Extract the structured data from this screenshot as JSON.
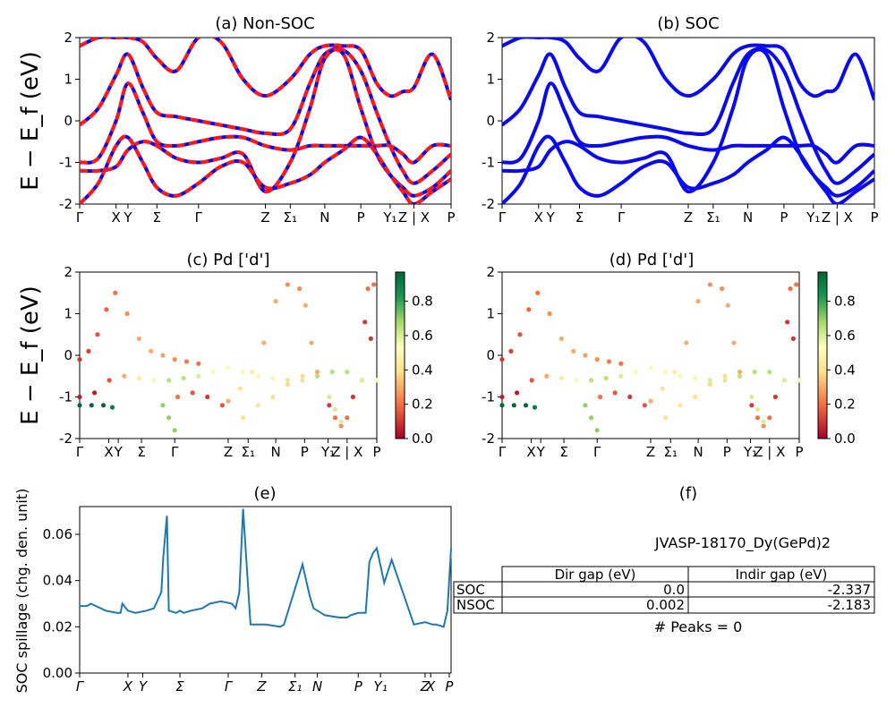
{
  "common": {
    "ylabel": "E − E_f (eV)",
    "k_labels": [
      "Γ",
      "X",
      "Y",
      "Σ",
      "Γ",
      "Z",
      "Σ₁",
      "N",
      "P",
      "Y₁",
      "Z | X",
      "P"
    ],
    "k_positions": [
      0,
      0.098,
      0.13,
      0.208,
      0.32,
      0.5,
      0.567,
      0.66,
      0.757,
      0.836,
      0.9,
      1.0
    ],
    "ylim": [
      -2,
      2
    ],
    "yticks": [
      -2,
      -1,
      0,
      1,
      2
    ]
  },
  "panel_a": {
    "title": "(a) Non-SOC"
  },
  "panel_b": {
    "title": "(b) SOC"
  },
  "panel_c": {
    "title": "(c)  Pd ['d']"
  },
  "panel_d": {
    "title": "(d) Pd ['d']"
  },
  "colorbar": {
    "ticks": [
      "0.0",
      "0.2",
      "0.4",
      "0.6",
      "0.8"
    ],
    "range": [
      0,
      0.97
    ]
  },
  "panel_e": {
    "title": "(e)",
    "ylabel": "SOC spillage (chg. den. unit)",
    "yticks": [
      "0.00",
      "0.02",
      "0.04",
      "0.06"
    ],
    "k_labels": [
      "Γ",
      "X",
      "Y",
      "Σ",
      "Γ",
      "Z",
      "Σ₁",
      "N",
      "P",
      "Y₁",
      "Z",
      "X",
      "P"
    ]
  },
  "panel_f": {
    "title": "(f)",
    "material": "JVASP-18170_Dy(GePd)2",
    "table": {
      "headers": [
        "Dir gap (eV)",
        "Indir gap (eV)"
      ],
      "rows": [
        {
          "label": "SOC",
          "dir": "0.0",
          "indir": "-2.337"
        },
        {
          "label": "NSOC",
          "dir": "0.002",
          "indir": "-2.183"
        }
      ]
    },
    "peaks": "# Peaks = 0"
  },
  "colors": {
    "non_soc": "#ff1a1a",
    "soc": "#0a0aee",
    "spillage": "#1f77b4"
  },
  "chart_data": [
    {
      "type": "line",
      "title": "(a) Non-SOC",
      "ylabel": "E − E_f (eV)",
      "ylim": [
        -2,
        2
      ],
      "x": [
        0,
        0.05,
        0.098,
        0.13,
        0.17,
        0.208,
        0.26,
        0.32,
        0.38,
        0.44,
        0.5,
        0.567,
        0.62,
        0.66,
        0.71,
        0.757,
        0.8,
        0.836,
        0.87,
        0.9,
        0.95,
        1.0
      ],
      "series": [
        {
          "name": "",
          "values": [
            -0.1,
            0.3,
            1.1,
            1.6,
            0.8,
            0.2,
            0.1,
            0.0,
            -0.1,
            -0.2,
            -0.3,
            -0.2,
            0.9,
            1.6,
            1.7,
            1.2,
            0.2,
            -0.6,
            -1.2,
            -1.5,
            -1.2,
            -0.8
          ]
        },
        {
          "name": "",
          "values": [
            -1.0,
            -0.9,
            0.0,
            0.9,
            0.2,
            -0.5,
            -0.6,
            -0.5,
            -0.4,
            -0.4,
            -0.6,
            -0.7,
            -0.6,
            -0.6,
            -0.6,
            -0.6,
            -0.6,
            -0.6,
            -0.8,
            -1.0,
            -0.6,
            -0.6
          ]
        },
        {
          "name": "",
          "values": [
            -1.2,
            -1.2,
            -1.1,
            -0.7,
            -0.5,
            -0.6,
            -0.9,
            -1.0,
            -0.9,
            -0.8,
            -1.7,
            -1.0,
            0.3,
            1.5,
            1.6,
            0.3,
            -0.8,
            -1.3,
            -1.6,
            -1.8,
            -1.6,
            -1.2
          ]
        },
        {
          "name": "",
          "values": [
            -2.0,
            -1.5,
            -0.6,
            -0.4,
            -1.0,
            -1.6,
            -1.8,
            -1.5,
            -1.1,
            -1.0,
            -1.6,
            -1.5,
            -1.3,
            -1.0,
            -0.7,
            -0.4,
            -0.8,
            -1.3,
            -1.7,
            -2.0,
            -1.7,
            -1.4
          ]
        },
        {
          "name": "",
          "values": [
            1.8,
            2.0,
            2.0,
            2.0,
            1.9,
            1.5,
            1.2,
            2.0,
            1.9,
            1.0,
            0.6,
            1.0,
            1.6,
            1.8,
            1.8,
            1.7,
            0.9,
            0.6,
            0.7,
            0.8,
            1.6,
            0.5
          ]
        }
      ]
    },
    {
      "type": "line",
      "title": "(b) SOC",
      "ylim": [
        -2,
        2
      ],
      "x": [
        0,
        0.05,
        0.098,
        0.13,
        0.17,
        0.208,
        0.26,
        0.32,
        0.38,
        0.44,
        0.5,
        0.567,
        0.62,
        0.66,
        0.71,
        0.757,
        0.8,
        0.836,
        0.87,
        0.9,
        0.95,
        1.0
      ],
      "series": [
        {
          "name": "",
          "values": [
            -0.1,
            0.3,
            1.1,
            1.6,
            0.8,
            0.2,
            0.1,
            0.0,
            -0.1,
            -0.2,
            -0.3,
            -0.2,
            0.9,
            1.6,
            1.7,
            1.2,
            0.2,
            -0.6,
            -1.2,
            -1.5,
            -1.2,
            -0.8
          ]
        },
        {
          "name": "",
          "values": [
            -1.0,
            -0.9,
            0.0,
            0.9,
            0.2,
            -0.5,
            -0.6,
            -0.5,
            -0.4,
            -0.4,
            -0.6,
            -0.7,
            -0.6,
            -0.6,
            -0.6,
            -0.6,
            -0.6,
            -0.6,
            -0.8,
            -1.0,
            -0.6,
            -0.6
          ]
        },
        {
          "name": "",
          "values": [
            -1.2,
            -1.2,
            -1.1,
            -0.7,
            -0.5,
            -0.6,
            -0.9,
            -1.0,
            -0.9,
            -0.8,
            -1.7,
            -1.0,
            0.3,
            1.5,
            1.6,
            0.3,
            -0.8,
            -1.3,
            -1.6,
            -1.8,
            -1.6,
            -1.2
          ]
        },
        {
          "name": "",
          "values": [
            -2.0,
            -1.5,
            -0.6,
            -0.4,
            -1.0,
            -1.6,
            -1.8,
            -1.5,
            -1.1,
            -1.0,
            -1.6,
            -1.5,
            -1.3,
            -1.0,
            -0.7,
            -0.4,
            -0.8,
            -1.3,
            -1.7,
            -2.0,
            -1.7,
            -1.4
          ]
        },
        {
          "name": "",
          "values": [
            1.8,
            2.0,
            2.0,
            2.0,
            1.9,
            1.5,
            1.2,
            2.0,
            1.9,
            1.0,
            0.6,
            1.0,
            1.6,
            1.8,
            1.8,
            1.7,
            0.9,
            0.6,
            0.7,
            0.8,
            1.6,
            0.5
          ]
        }
      ]
    },
    {
      "type": "scatter",
      "title": "(c)  Pd ['d']",
      "ylim": [
        -2,
        2
      ],
      "colorbar_range": [
        0,
        0.97
      ],
      "points": [
        [
          0,
          -0.1,
          0.1
        ],
        [
          0.03,
          0.1,
          0.12
        ],
        [
          0.06,
          0.5,
          0.15
        ],
        [
          0.09,
          1.1,
          0.18
        ],
        [
          0.12,
          1.5,
          0.2
        ],
        [
          0.16,
          1.0,
          0.25
        ],
        [
          0.2,
          0.4,
          0.3
        ],
        [
          0.24,
          0.1,
          0.3
        ],
        [
          0.28,
          0.0,
          0.28
        ],
        [
          0.32,
          -0.1,
          0.25
        ],
        [
          0.36,
          -0.15,
          0.22
        ],
        [
          0.4,
          -0.2,
          0.2
        ],
        [
          0.0,
          -1.0,
          0.05
        ],
        [
          0.05,
          -0.9,
          0.05
        ],
        [
          0.1,
          -0.6,
          0.15
        ],
        [
          0.15,
          -0.5,
          0.3
        ],
        [
          0.2,
          -0.55,
          0.45
        ],
        [
          0.25,
          -0.6,
          0.55
        ],
        [
          0.3,
          -0.6,
          0.65
        ],
        [
          0.35,
          -0.55,
          0.65
        ],
        [
          0.4,
          -0.5,
          0.6
        ],
        [
          0.45,
          -0.4,
          0.55
        ],
        [
          0.5,
          -0.3,
          0.5
        ],
        [
          0.55,
          -0.4,
          0.5
        ],
        [
          0.6,
          -0.5,
          0.5
        ],
        [
          0.65,
          -0.55,
          0.55
        ],
        [
          0.7,
          -0.6,
          0.6
        ],
        [
          0.75,
          -0.6,
          0.6
        ],
        [
          0.8,
          -0.5,
          0.65
        ],
        [
          0.85,
          -0.4,
          0.65
        ],
        [
          0.9,
          -0.4,
          0.65
        ],
        [
          0.95,
          -0.6,
          0.6
        ],
        [
          1.0,
          -0.6,
          0.55
        ],
        [
          0.0,
          -1.2,
          0.97
        ],
        [
          0.04,
          -1.2,
          0.97
        ],
        [
          0.08,
          -1.2,
          0.97
        ],
        [
          0.11,
          -1.25,
          0.9
        ],
        [
          0.28,
          -1.2,
          0.7
        ],
        [
          0.3,
          -1.5,
          0.7
        ],
        [
          0.32,
          -1.8,
          0.7
        ],
        [
          0.33,
          -1.0,
          0.2
        ],
        [
          0.38,
          -0.9,
          0.15
        ],
        [
          0.43,
          -1.0,
          0.1
        ],
        [
          0.48,
          -1.2,
          0.15
        ],
        [
          0.5,
          -1.1,
          0.3
        ],
        [
          0.54,
          -0.8,
          0.4
        ],
        [
          0.58,
          -0.4,
          0.45
        ],
        [
          0.62,
          0.3,
          0.3
        ],
        [
          0.66,
          1.3,
          0.3
        ],
        [
          0.7,
          1.7,
          0.25
        ],
        [
          0.74,
          1.6,
          0.25
        ],
        [
          0.76,
          1.2,
          0.3
        ],
        [
          0.78,
          0.3,
          0.3
        ],
        [
          0.8,
          -0.4,
          0.3
        ],
        [
          0.84,
          -1.2,
          0.1
        ],
        [
          0.86,
          -1.5,
          0.2
        ],
        [
          0.88,
          -1.7,
          0.25
        ],
        [
          0.9,
          -1.5,
          0.2
        ],
        [
          0.92,
          -1.0,
          0.1
        ],
        [
          0.55,
          -1.5,
          0.4
        ],
        [
          0.6,
          -1.2,
          0.42
        ],
        [
          0.65,
          -1.0,
          0.4
        ],
        [
          0.7,
          -0.7,
          0.38
        ],
        [
          0.75,
          -0.5,
          0.38
        ],
        [
          0.97,
          1.6,
          0.2
        ],
        [
          0.99,
          1.7,
          0.2
        ],
        [
          0.96,
          0.8,
          0.1
        ],
        [
          0.98,
          0.4,
          0.1
        ],
        [
          0.84,
          -1.0,
          0.6
        ],
        [
          0.86,
          -1.3,
          0.6
        ],
        [
          0.88,
          -1.6,
          0.6
        ]
      ]
    },
    {
      "type": "scatter",
      "title": "(d) Pd ['d']",
      "ylim": [
        -2,
        2
      ],
      "colorbar_range": [
        0,
        0.97
      ],
      "points": [
        [
          0,
          -0.1,
          0.1
        ],
        [
          0.03,
          0.1,
          0.12
        ],
        [
          0.06,
          0.5,
          0.15
        ],
        [
          0.09,
          1.1,
          0.18
        ],
        [
          0.12,
          1.5,
          0.2
        ],
        [
          0.16,
          1.0,
          0.25
        ],
        [
          0.2,
          0.4,
          0.3
        ],
        [
          0.24,
          0.1,
          0.3
        ],
        [
          0.28,
          0.0,
          0.28
        ],
        [
          0.32,
          -0.1,
          0.25
        ],
        [
          0.36,
          -0.15,
          0.22
        ],
        [
          0.4,
          -0.2,
          0.2
        ],
        [
          0.0,
          -1.0,
          0.05
        ],
        [
          0.05,
          -0.9,
          0.05
        ],
        [
          0.1,
          -0.6,
          0.15
        ],
        [
          0.15,
          -0.5,
          0.3
        ],
        [
          0.2,
          -0.55,
          0.45
        ],
        [
          0.25,
          -0.6,
          0.55
        ],
        [
          0.3,
          -0.6,
          0.65
        ],
        [
          0.35,
          -0.55,
          0.65
        ],
        [
          0.4,
          -0.5,
          0.6
        ],
        [
          0.45,
          -0.4,
          0.55
        ],
        [
          0.5,
          -0.3,
          0.5
        ],
        [
          0.55,
          -0.4,
          0.5
        ],
        [
          0.6,
          -0.5,
          0.5
        ],
        [
          0.65,
          -0.55,
          0.55
        ],
        [
          0.7,
          -0.6,
          0.6
        ],
        [
          0.75,
          -0.6,
          0.6
        ],
        [
          0.8,
          -0.5,
          0.65
        ],
        [
          0.85,
          -0.4,
          0.65
        ],
        [
          0.9,
          -0.4,
          0.65
        ],
        [
          0.95,
          -0.6,
          0.6
        ],
        [
          1.0,
          -0.6,
          0.55
        ],
        [
          0.0,
          -1.2,
          0.97
        ],
        [
          0.04,
          -1.2,
          0.97
        ],
        [
          0.08,
          -1.2,
          0.97
        ],
        [
          0.11,
          -1.25,
          0.9
        ],
        [
          0.28,
          -1.2,
          0.7
        ],
        [
          0.3,
          -1.5,
          0.7
        ],
        [
          0.32,
          -1.8,
          0.7
        ],
        [
          0.33,
          -1.0,
          0.2
        ],
        [
          0.38,
          -0.9,
          0.15
        ],
        [
          0.43,
          -1.0,
          0.1
        ],
        [
          0.48,
          -1.2,
          0.15
        ],
        [
          0.5,
          -1.1,
          0.3
        ],
        [
          0.54,
          -0.8,
          0.4
        ],
        [
          0.58,
          -0.4,
          0.45
        ],
        [
          0.62,
          0.3,
          0.3
        ],
        [
          0.66,
          1.3,
          0.3
        ],
        [
          0.7,
          1.7,
          0.25
        ],
        [
          0.74,
          1.6,
          0.25
        ],
        [
          0.76,
          1.2,
          0.3
        ],
        [
          0.78,
          0.3,
          0.3
        ],
        [
          0.8,
          -0.4,
          0.3
        ],
        [
          0.84,
          -1.2,
          0.1
        ],
        [
          0.86,
          -1.5,
          0.2
        ],
        [
          0.88,
          -1.7,
          0.25
        ],
        [
          0.9,
          -1.5,
          0.2
        ],
        [
          0.92,
          -1.0,
          0.1
        ],
        [
          0.55,
          -1.5,
          0.4
        ],
        [
          0.6,
          -1.2,
          0.42
        ],
        [
          0.65,
          -1.0,
          0.4
        ],
        [
          0.7,
          -0.7,
          0.38
        ],
        [
          0.75,
          -0.5,
          0.38
        ],
        [
          0.97,
          1.6,
          0.2
        ],
        [
          0.99,
          1.7,
          0.2
        ],
        [
          0.96,
          0.8,
          0.1
        ],
        [
          0.98,
          0.4,
          0.1
        ],
        [
          0.84,
          -1.0,
          0.6
        ],
        [
          0.86,
          -1.3,
          0.6
        ],
        [
          0.88,
          -1.6,
          0.6
        ]
      ]
    },
    {
      "type": "line",
      "title": "(e)",
      "ylabel": "SOC spillage (chg. den. unit)",
      "ylim": [
        0,
        0.072
      ],
      "x": [
        0,
        0.02,
        0.03,
        0.07,
        0.1,
        0.11,
        0.115,
        0.13,
        0.15,
        0.18,
        0.2,
        0.22,
        0.225,
        0.235,
        0.24,
        0.26,
        0.27,
        0.28,
        0.3,
        0.33,
        0.35,
        0.38,
        0.41,
        0.42,
        0.43,
        0.44,
        0.46,
        0.5,
        0.54,
        0.55,
        0.6,
        0.62,
        0.63,
        0.65,
        0.66,
        0.7,
        0.72,
        0.73,
        0.75,
        0.77,
        0.78,
        0.79,
        0.8,
        0.82,
        0.84,
        0.9,
        0.93,
        0.95,
        0.96,
        0.98,
        0.99,
        1.0
      ],
      "series": [
        {
          "name": "",
          "values": [
            0.029,
            0.029,
            0.03,
            0.027,
            0.026,
            0.026,
            0.03,
            0.027,
            0.026,
            0.027,
            0.028,
            0.035,
            0.05,
            0.068,
            0.027,
            0.026,
            0.027,
            0.026,
            0.027,
            0.028,
            0.03,
            0.031,
            0.03,
            0.028,
            0.035,
            0.071,
            0.021,
            0.021,
            0.02,
            0.021,
            0.047,
            0.033,
            0.028,
            0.026,
            0.025,
            0.024,
            0.024,
            0.025,
            0.026,
            0.026,
            0.048,
            0.052,
            0.054,
            0.039,
            0.049,
            0.021,
            0.022,
            0.021,
            0.021,
            0.02,
            0.027,
            0.054
          ]
        }
      ]
    }
  ]
}
